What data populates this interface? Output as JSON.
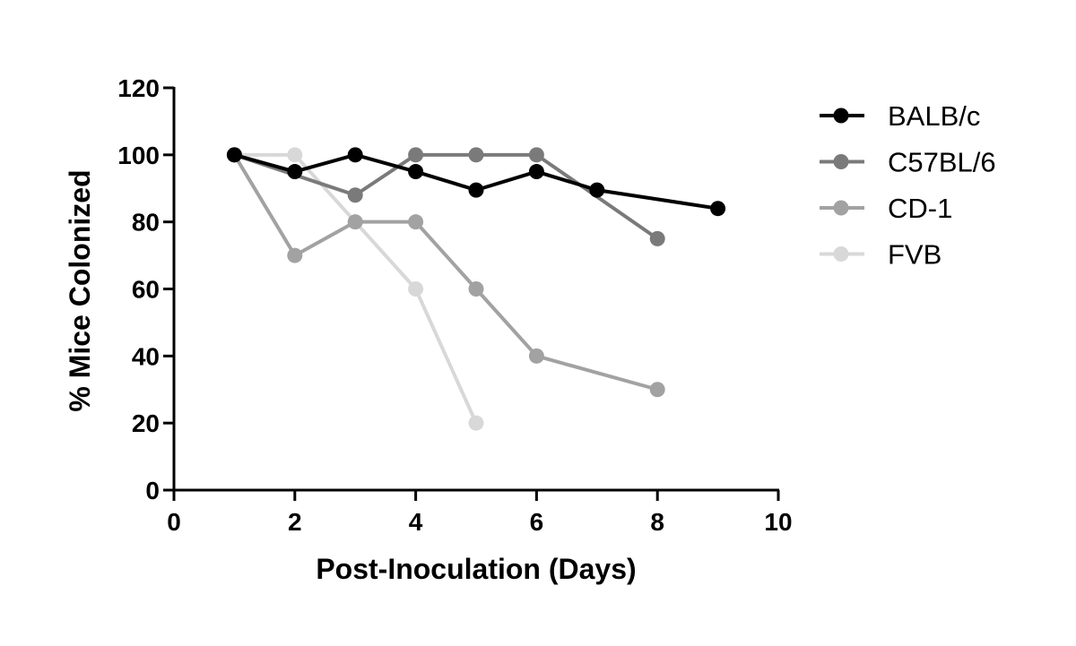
{
  "chart_data": {
    "type": "line",
    "title": "",
    "xlabel": "Post-Inoculation (Days)",
    "ylabel": "% Mice Colonized",
    "xlim": [
      0,
      10
    ],
    "ylim": [
      0,
      120
    ],
    "x_ticks": [
      0,
      2,
      4,
      6,
      8,
      10
    ],
    "y_ticks": [
      0,
      20,
      40,
      60,
      80,
      100,
      120
    ],
    "x_tick_labels": [
      "0",
      "2",
      "4",
      "6",
      "8",
      "10"
    ],
    "y_tick_labels": [
      "0",
      "20",
      "40",
      "60",
      "80",
      "100",
      "120"
    ],
    "grid": false,
    "legend_position": "right",
    "series": [
      {
        "name": "BALB/c",
        "color": "#000000",
        "x": [
          1,
          2,
          3,
          4,
          5,
          6,
          7,
          9
        ],
        "y": [
          100,
          95,
          100,
          95,
          89.5,
          95,
          89.5,
          84
        ]
      },
      {
        "name": "C57BL/6",
        "color": "#7a7a7a",
        "x": [
          1,
          3,
          4,
          5,
          6,
          8
        ],
        "y": [
          100,
          88,
          100,
          100,
          100,
          75
        ]
      },
      {
        "name": "CD-1",
        "color": "#a2a2a2",
        "x": [
          1,
          2,
          3,
          4,
          5,
          6,
          8
        ],
        "y": [
          100,
          70,
          80,
          80,
          60,
          40,
          30
        ]
      },
      {
        "name": "FVB",
        "color": "#d8d8d8",
        "x": [
          1,
          2,
          4,
          5
        ],
        "y": [
          100,
          100,
          60,
          20
        ]
      }
    ]
  }
}
